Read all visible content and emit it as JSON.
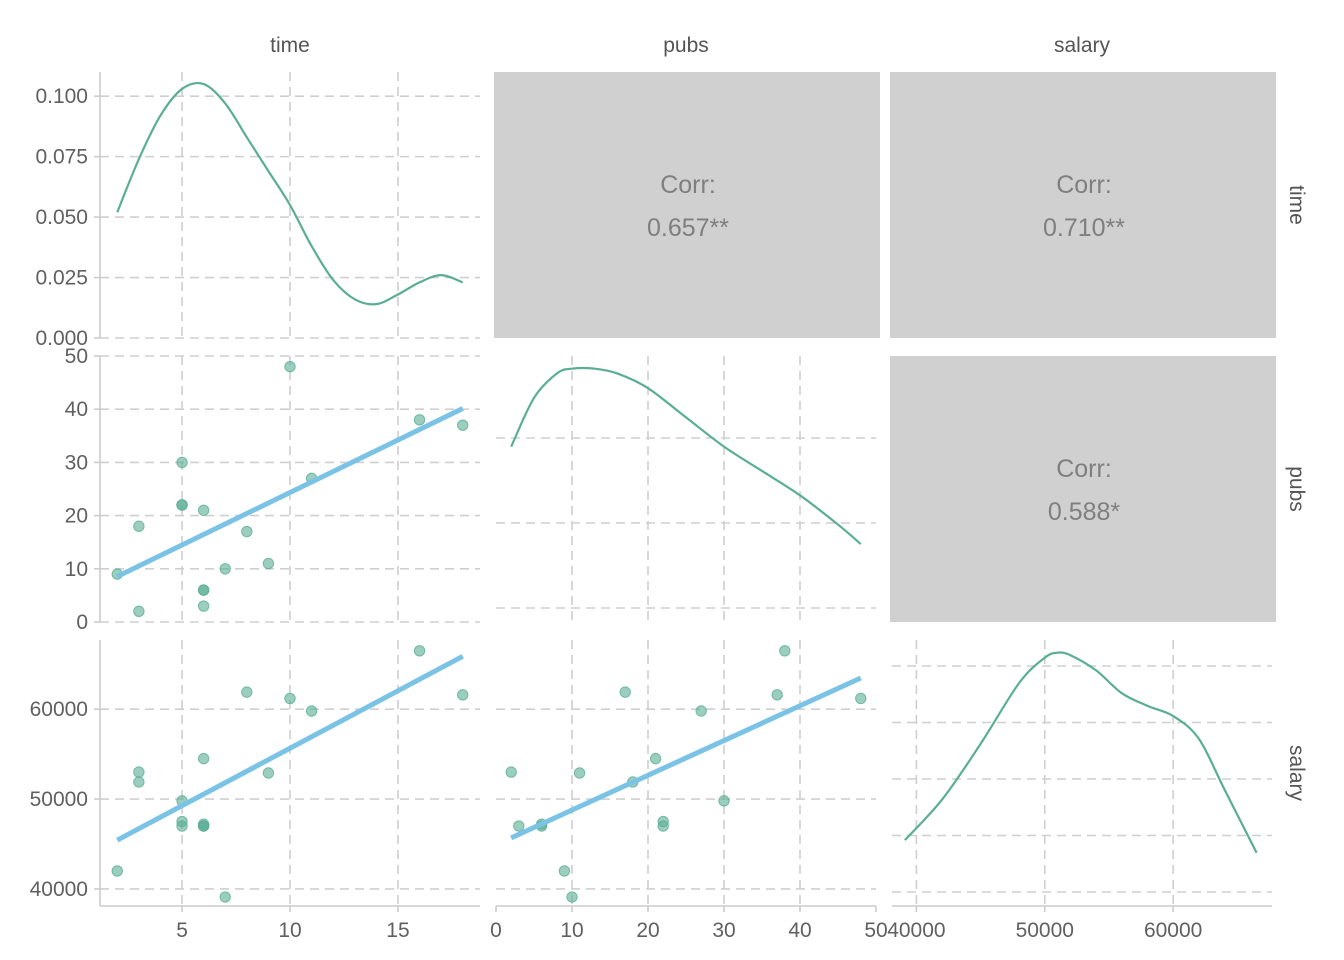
{
  "chart_data": {
    "type": "scatter-matrix",
    "variables": [
      "time",
      "pubs",
      "salary"
    ],
    "colors": {
      "point": "#5aae95",
      "density": "#5aae95",
      "fit": "#7ac3e6",
      "corr_bg": "#d0d0d0",
      "grid": "#cfcfcf"
    },
    "observations": {
      "time": [
        2,
        3,
        3,
        5,
        5,
        5,
        6,
        6,
        6,
        6,
        7,
        8,
        9,
        10,
        11,
        16,
        18
      ],
      "pubs": [
        9,
        2,
        18,
        30,
        22,
        22,
        21,
        6,
        3,
        6,
        10,
        17,
        11,
        48,
        27,
        38,
        37
      ],
      "salary": [
        42000,
        53000,
        51900,
        49800,
        47500,
        47000,
        54500,
        47000,
        47000,
        47200,
        39100,
        61900,
        52900,
        61200,
        59800,
        66500,
        61600
      ]
    },
    "axes": {
      "time": {
        "range": [
          1.2,
          18.8
        ],
        "ticks": [
          5,
          10,
          15
        ],
        "tick_labels": [
          "5",
          "10",
          "15"
        ]
      },
      "pubs": {
        "range": [
          0,
          50
        ],
        "ticks": [
          0,
          10,
          20,
          30,
          40,
          50
        ],
        "tick_labels": [
          "0",
          "10",
          "20",
          "30",
          "40",
          "50"
        ]
      },
      "salary": {
        "range": [
          38100,
          67700
        ],
        "ticks": [
          40000,
          50000,
          60000
        ],
        "tick_labels": [
          "40000",
          "50000",
          "60000"
        ]
      }
    },
    "density_axis": {
      "range": [
        0,
        0.11
      ],
      "ticks": [
        0,
        0.025,
        0.05,
        0.075,
        0.1
      ],
      "tick_labels": [
        "0.000",
        "0.025",
        "0.050",
        "0.075",
        "0.100"
      ]
    },
    "densities": {
      "time": {
        "x": [
          2,
          3,
          4,
          5,
          6,
          7,
          8,
          9,
          10,
          11,
          12,
          13,
          14,
          15,
          16,
          17,
          18
        ],
        "y": [
          0.052,
          0.074,
          0.092,
          0.103,
          0.105,
          0.097,
          0.083,
          0.069,
          0.055,
          0.038,
          0.024,
          0.016,
          0.014,
          0.018,
          0.023,
          0.026,
          0.023
        ]
      },
      "pubs": {
        "x": [
          2,
          5,
          8,
          10,
          13,
          16,
          20,
          25,
          30,
          35,
          40,
          45,
          48
        ],
        "y": [
          0.036,
          0.046,
          0.051,
          0.052,
          0.052,
          0.051,
          0.048,
          0.042,
          0.036,
          0.031,
          0.026,
          0.02,
          0.016
        ]
      },
      "salary": {
        "x": [
          39100,
          42000,
          45000,
          48000,
          50000,
          51000,
          52000,
          54000,
          56000,
          58000,
          60000,
          62000,
          64000,
          66500
        ],
        "y": [
          0.26,
          0.42,
          0.64,
          0.88,
          0.98,
          1.0,
          0.99,
          0.93,
          0.84,
          0.79,
          0.75,
          0.66,
          0.46,
          0.21
        ]
      }
    },
    "correlations": [
      {
        "row": "time",
        "col": "pubs",
        "label": "Corr:",
        "value": "0.657**"
      },
      {
        "row": "time",
        "col": "salary",
        "label": "Corr:",
        "value": "0.710**"
      },
      {
        "row": "pubs",
        "col": "salary",
        "label": "Corr:",
        "value": "0.588*"
      }
    ],
    "grid": true,
    "legend": "none"
  }
}
